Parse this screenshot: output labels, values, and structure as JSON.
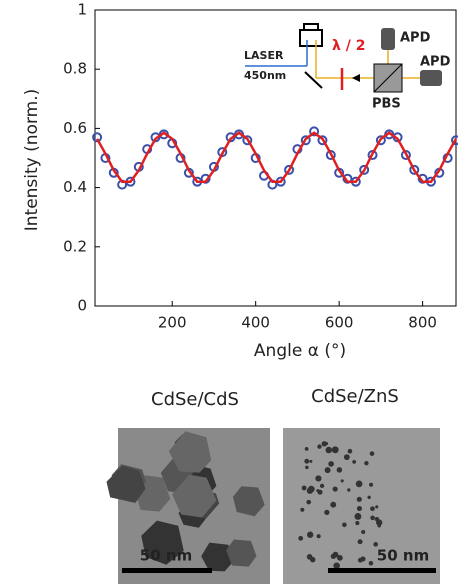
{
  "chart_data": {
    "type": "scatter",
    "ylabel": "Intensity (norm.)",
    "xlabel": "Angle α (°)",
    "xlim": [
      15,
      880
    ],
    "ylim": [
      0,
      1
    ],
    "xticks": [
      200,
      400,
      600,
      800
    ],
    "yticks": [
      0,
      0.2,
      0.4,
      0.6,
      0.8,
      1
    ],
    "x": [
      20,
      40,
      60,
      80,
      100,
      120,
      140,
      160,
      180,
      200,
      220,
      240,
      260,
      280,
      300,
      320,
      340,
      360,
      380,
      400,
      420,
      440,
      460,
      480,
      500,
      520,
      540,
      560,
      580,
      600,
      620,
      640,
      660,
      680,
      700,
      720,
      740,
      760,
      780,
      800,
      820,
      840,
      860,
      880
    ],
    "series": [
      {
        "type": "scatter",
        "color": "#3a4fa8",
        "values": [
          0.57,
          0.5,
          0.45,
          0.41,
          0.42,
          0.47,
          0.53,
          0.57,
          0.58,
          0.55,
          0.5,
          0.45,
          0.42,
          0.43,
          0.47,
          0.52,
          0.57,
          0.58,
          0.56,
          0.5,
          0.44,
          0.41,
          0.42,
          0.46,
          0.53,
          0.56,
          0.59,
          0.56,
          0.51,
          0.45,
          0.43,
          0.42,
          0.46,
          0.51,
          0.56,
          0.58,
          0.57,
          0.51,
          0.46,
          0.43,
          0.42,
          0.45,
          0.5,
          0.56
        ]
      },
      {
        "type": "line",
        "color": "#e02020",
        "values": [
          0.565,
          0.515,
          0.458,
          0.42,
          0.42,
          0.458,
          0.515,
          0.565,
          0.585,
          0.565,
          0.515,
          0.458,
          0.42,
          0.42,
          0.458,
          0.515,
          0.565,
          0.585,
          0.565,
          0.515,
          0.458,
          0.42,
          0.42,
          0.458,
          0.515,
          0.565,
          0.585,
          0.565,
          0.515,
          0.458,
          0.42,
          0.42,
          0.458,
          0.515,
          0.565,
          0.585,
          0.565,
          0.515,
          0.458,
          0.42,
          0.42,
          0.458,
          0.515,
          0.565
        ]
      }
    ],
    "inset": {
      "laser": "LASER",
      "wavelength": "450nm",
      "waveplate": "λ / 2",
      "detector_top": "APD",
      "detector_right": "APD",
      "splitter": "PBS"
    },
    "panels": [
      {
        "title": "CdSe/CdS",
        "scale": "50 nm"
      },
      {
        "title": "CdSe/ZnS",
        "scale": "50 nm"
      }
    ]
  }
}
